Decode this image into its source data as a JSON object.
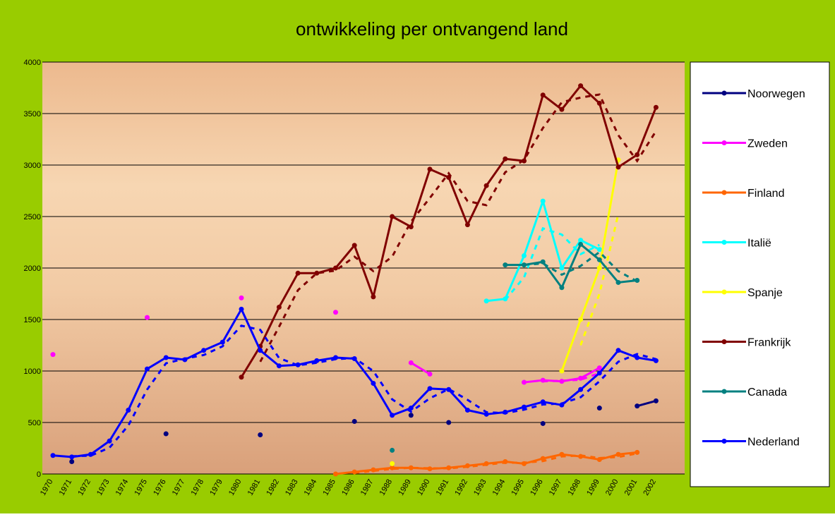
{
  "chart_data": {
    "type": "line",
    "title": "ontwikkeling per ontvangend land",
    "categories": [
      "1970",
      "1971",
      "1972",
      "1973",
      "1974",
      "1975",
      "1976",
      "1977",
      "1978",
      "1979",
      "1980",
      "1981",
      "1982",
      "1983",
      "1984",
      "1985",
      "1986",
      "1987",
      "1988",
      "1989",
      "1990",
      "1991",
      "1992",
      "1993",
      "1994",
      "1995",
      "1996",
      "1997",
      "1998",
      "1999",
      "2000",
      "2001",
      "2002"
    ],
    "ylim": [
      0,
      4000
    ],
    "yticks": [
      0,
      500,
      1000,
      1500,
      2000,
      2500,
      3000,
      3500,
      4000
    ],
    "grid": true,
    "legend": "right",
    "series": [
      {
        "name": "Noorwegen",
        "color": "#000080",
        "values": [
          null,
          120,
          null,
          null,
          null,
          null,
          390,
          null,
          null,
          null,
          null,
          380,
          null,
          null,
          null,
          null,
          510,
          null,
          null,
          570,
          null,
          500,
          null,
          null,
          null,
          null,
          490,
          null,
          null,
          640,
          null,
          660,
          710
        ]
      },
      {
        "name": "Zweden",
        "color": "#ff00ff",
        "values": [
          1160,
          null,
          null,
          null,
          null,
          1520,
          null,
          null,
          null,
          null,
          1710,
          null,
          null,
          null,
          null,
          1570,
          null,
          null,
          null,
          1080,
          970,
          null,
          null,
          null,
          null,
          890,
          910,
          900,
          930,
          1030,
          null,
          null,
          null
        ]
      },
      {
        "name": "Finland",
        "color": "#ff6600",
        "values": [
          null,
          null,
          null,
          null,
          null,
          null,
          null,
          null,
          null,
          null,
          null,
          null,
          null,
          null,
          null,
          0,
          20,
          40,
          60,
          60,
          50,
          60,
          80,
          100,
          120,
          100,
          150,
          190,
          170,
          140,
          190,
          210,
          null
        ]
      },
      {
        "name": "Italië",
        "color": "#00ffff",
        "values": [
          null,
          null,
          null,
          null,
          null,
          null,
          null,
          null,
          null,
          null,
          null,
          null,
          null,
          null,
          null,
          null,
          null,
          null,
          null,
          null,
          null,
          null,
          null,
          1680,
          1700,
          2120,
          2650,
          2000,
          2270,
          2180,
          null,
          null,
          null
        ]
      },
      {
        "name": "Spanje",
        "color": "#ffff00",
        "values": [
          null,
          null,
          null,
          null,
          null,
          null,
          null,
          null,
          null,
          null,
          null,
          null,
          null,
          null,
          null,
          null,
          null,
          null,
          100,
          null,
          null,
          null,
          null,
          null,
          null,
          null,
          null,
          1000,
          1500,
          2000,
          3050,
          null,
          null
        ]
      },
      {
        "name": "Frankrijk",
        "color": "#800000",
        "values": [
          null,
          null,
          null,
          null,
          null,
          null,
          null,
          null,
          null,
          null,
          940,
          1240,
          1620,
          1950,
          1950,
          2000,
          2220,
          1720,
          2500,
          2400,
          2960,
          2880,
          2420,
          2800,
          3060,
          3040,
          3680,
          3540,
          3770,
          3600,
          2980,
          3100,
          3560
        ]
      },
      {
        "name": "Canada",
        "color": "#008080",
        "values": [
          null,
          null,
          null,
          null,
          null,
          null,
          null,
          null,
          null,
          null,
          null,
          null,
          null,
          null,
          null,
          null,
          null,
          null,
          230,
          null,
          null,
          null,
          null,
          null,
          2030,
          2030,
          2060,
          1810,
          2230,
          2080,
          1860,
          1880,
          null
        ]
      },
      {
        "name": "Nederland",
        "color": "#0000ff",
        "values": [
          180,
          165,
          190,
          320,
          620,
          1020,
          1130,
          1110,
          1200,
          1280,
          1600,
          1200,
          1050,
          1060,
          1100,
          1130,
          1120,
          880,
          570,
          640,
          830,
          820,
          620,
          580,
          600,
          650,
          700,
          670,
          820,
          980,
          1200,
          1130,
          1100
        ]
      }
    ]
  }
}
